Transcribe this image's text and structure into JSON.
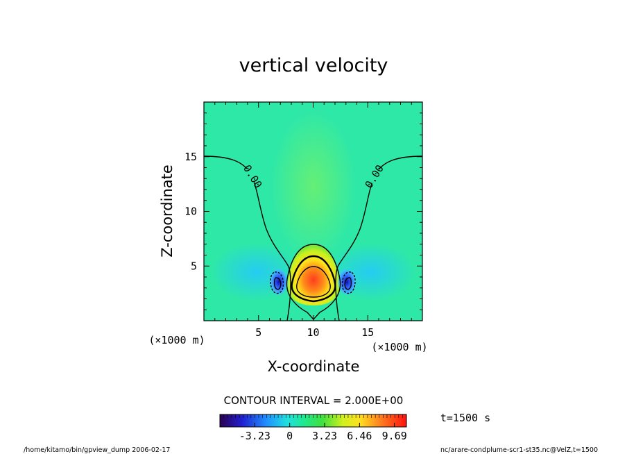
{
  "chart_data": {
    "type": "heatmap",
    "title": "vertical velocity",
    "xlabel": "X-coordinate",
    "ylabel": "Z-coordinate",
    "x_unit": "(×1000 m)",
    "z_unit": "(×1000 m)",
    "xlim": [
      0,
      20
    ],
    "ylim": [
      0,
      20
    ],
    "x_ticks": [
      5,
      10,
      15
    ],
    "y_ticks": [
      5,
      10,
      15
    ],
    "contour_interval_text": "CONTOUR INTERVAL = 2.000E+00",
    "contour_labels": [
      "0.00",
      "0.00"
    ],
    "colorbar": {
      "tick_labels": [
        "-3.23",
        "0",
        "3.23",
        "6.46",
        "9.69"
      ],
      "tick_values": [
        -3.23,
        0,
        3.23,
        6.46,
        9.69
      ],
      "range": [
        -6.46,
        10.8
      ]
    },
    "time_text": "t=1500 s",
    "features": [
      {
        "type": "updraft_max",
        "x": 10.0,
        "z": 3.7,
        "value": 9.69
      },
      {
        "type": "downdraft_min",
        "x": 6.9,
        "z": 3.2,
        "value": -6.0
      },
      {
        "type": "downdraft_min",
        "x": 13.1,
        "z": 3.2,
        "value": -6.0
      }
    ]
  },
  "footer": {
    "left": "/home/kitamo/bin/gpview_dump  2006-02-17",
    "right": "nc/arare-condplume-scr1-st35.nc@VelZ,t=1500"
  },
  "colors": {
    "background_field": "#2ee8a8",
    "contour": "#000000"
  }
}
